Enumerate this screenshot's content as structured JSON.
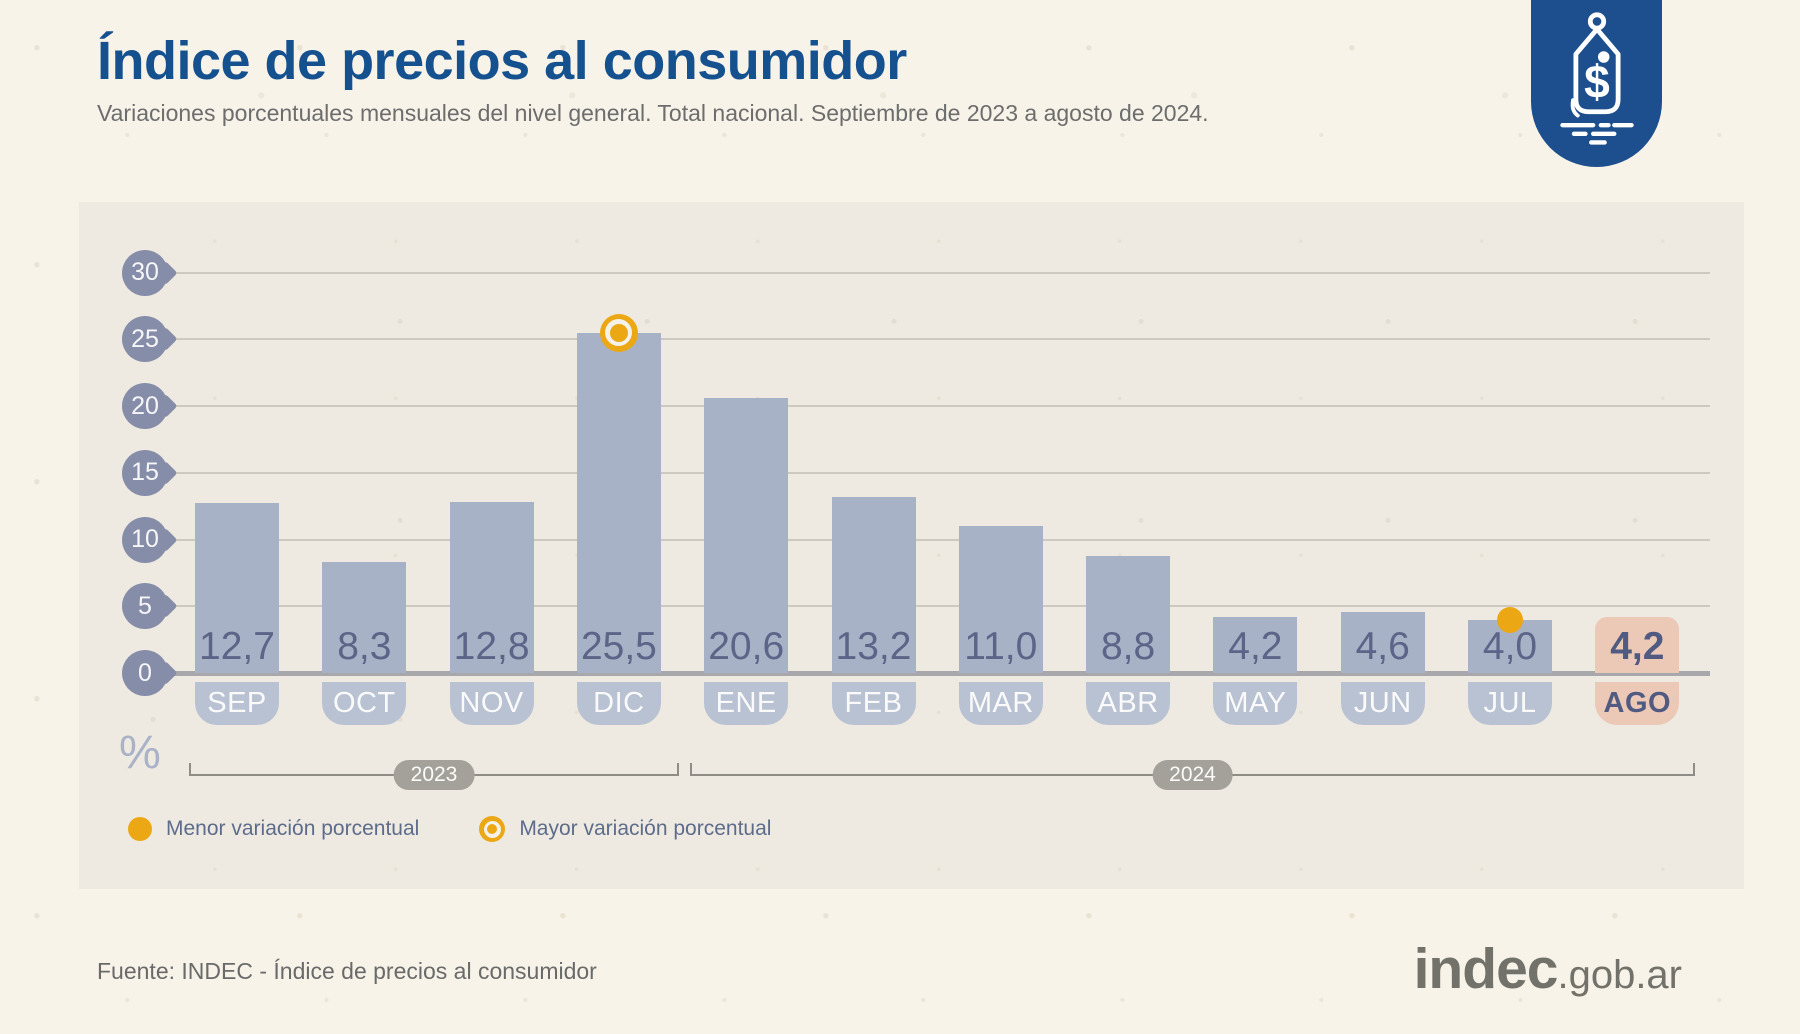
{
  "header": {
    "title": "Índice de precios al consumidor",
    "subtitle": "Variaciones porcentuales mensuales del nivel general. Total nacional. Septiembre de 2023 a agosto de 2024."
  },
  "badge": {
    "icon": "price-tag-icon",
    "bg_color": "#1d4e8d"
  },
  "chart_data": {
    "type": "bar",
    "title": "Índice de precios al consumidor",
    "categories": [
      "SEP",
      "OCT",
      "NOV",
      "DIC",
      "ENE",
      "FEB",
      "MAR",
      "ABR",
      "MAY",
      "JUN",
      "JUL",
      "AGO"
    ],
    "values": [
      12.7,
      8.3,
      12.8,
      25.5,
      20.6,
      13.2,
      11.0,
      8.8,
      4.2,
      4.6,
      4.0,
      4.2
    ],
    "value_labels": [
      "12,7",
      "8,3",
      "12,8",
      "25,5",
      "20,6",
      "13,2",
      "11,0",
      "8,8",
      "4,2",
      "4,6",
      "4,0",
      "4,2"
    ],
    "ylabel": "%",
    "y_ticks": [
      30,
      25,
      20,
      15,
      10,
      5,
      0
    ],
    "ylim": [
      0,
      30
    ],
    "grid": true,
    "legend_position": "bottom-left",
    "highlight_index": 11,
    "max_marker": {
      "index": 3,
      "style": "ring-dot"
    },
    "min_marker": {
      "index": 10,
      "style": "solid-dot"
    },
    "year_groups": [
      {
        "label": "2023",
        "from": 0,
        "to": 3
      },
      {
        "label": "2024",
        "from": 4,
        "to": 11
      }
    ],
    "colors": {
      "bar": "#a8b2c6",
      "month_tab": "#b9c2d2",
      "highlight_bar": "#ecc9b7",
      "value_text": "#5c6488",
      "highlight_text": "#515a80",
      "tick_bubble": "#868da8",
      "gridline": "#cdc9c0",
      "axis": "#a7a7ac",
      "marker_orange": "#eca714",
      "year_pill": "#a4a19b",
      "title_blue": "#15508f"
    }
  },
  "legend": [
    {
      "swatch": "solid-dot",
      "label": "Menor variación porcentual"
    },
    {
      "swatch": "ring-dot",
      "label": "Mayor variación porcentual"
    }
  ],
  "footer": {
    "source": "Fuente: INDEC - Índice de precios al consumidor",
    "logo_main": "indec",
    "logo_suffix": ".gob.ar"
  }
}
